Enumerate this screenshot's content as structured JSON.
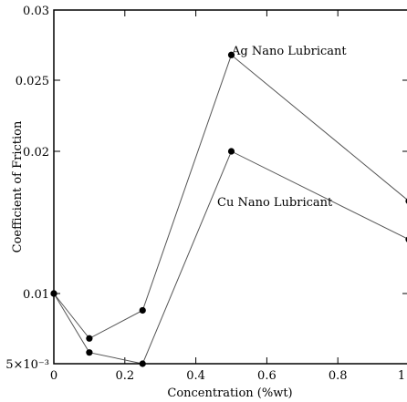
{
  "chart_data": {
    "type": "line",
    "title": "",
    "xlabel": "Concentration (%wt)",
    "ylabel": "Coefficient of Friction",
    "xlim": [
      0,
      1
    ],
    "ylim": [
      0.005,
      0.03
    ],
    "x_ticks": [
      0,
      0.2,
      0.4,
      0.6,
      0.8,
      1
    ],
    "x_tick_labels": [
      "0",
      "0.2",
      "0.4",
      "0.6",
      "0.8",
      "1"
    ],
    "y_ticks": [
      0.005,
      0.01,
      0.02,
      0.025,
      0.03
    ],
    "y_tick_labels": [
      "5×10⁻³",
      "0.01",
      "0.02",
      "0.025",
      "0.03"
    ],
    "grid": false,
    "series": [
      {
        "label_text": "Ag Nano  Lubricant",
        "x": [
          0,
          0.1,
          0.25,
          0.5,
          1.0
        ],
        "y": [
          0.01,
          0.0068,
          0.0088,
          0.0268,
          0.0165
        ]
      },
      {
        "label_text": "Cu Nano  Lubricant",
        "x": [
          0,
          0.1,
          0.25,
          0.5,
          1.0
        ],
        "y": [
          0.01,
          0.0058,
          0.005,
          0.02,
          0.0138
        ]
      }
    ]
  }
}
